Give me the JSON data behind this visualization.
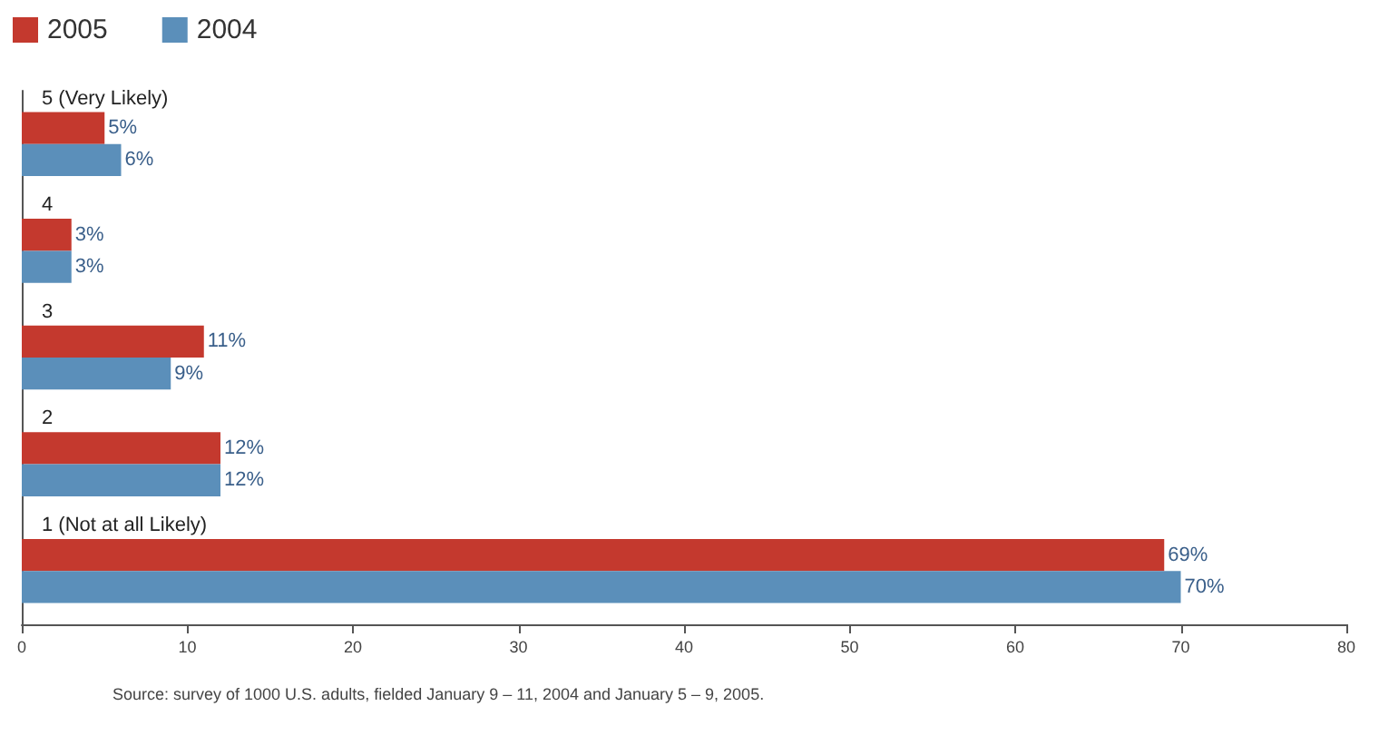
{
  "chart_data": {
    "type": "bar",
    "orientation": "horizontal",
    "categories": [
      "5 (Very Likely)",
      "4",
      "3",
      "2",
      "1 (Not at all Likely)"
    ],
    "series": [
      {
        "name": "2005",
        "color": "#c4392e",
        "values": [
          5,
          3,
          11,
          12,
          69
        ],
        "value_labels": [
          "5%",
          "3%",
          "11%",
          "12%",
          "69%"
        ]
      },
      {
        "name": "2004",
        "color": "#5b8fba",
        "values": [
          6,
          3,
          9,
          12,
          70
        ],
        "value_labels": [
          "6%",
          "3%",
          "9%",
          "12%",
          "70%"
        ]
      }
    ],
    "xlim": [
      0,
      80
    ],
    "xticks": [
      0,
      10,
      20,
      30,
      40,
      50,
      60,
      70,
      80
    ],
    "grid": false,
    "legend": "top left",
    "annotations": [
      "Source: survey of 1000 U.S. adults, fielded January 9 – 11, 2004 and January 5 – 9, 2005."
    ]
  }
}
